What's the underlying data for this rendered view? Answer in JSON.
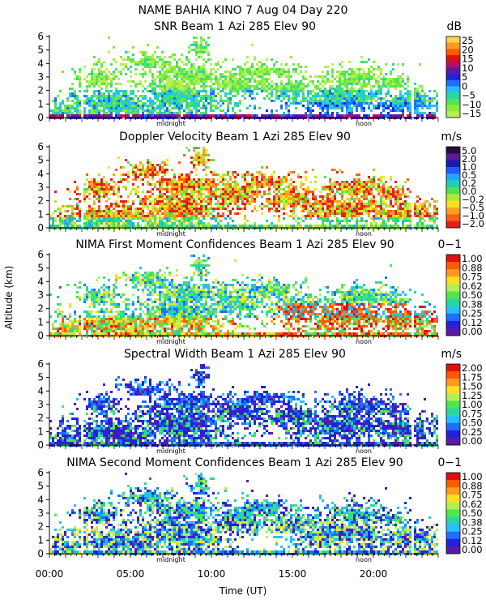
{
  "figure": {
    "header": "NAME BAHIA KINO    7 Aug 04 Day 220",
    "ylabel": "Altitude (km)",
    "xlabel": "Time (UT)",
    "xticks": [
      "00:00",
      "05:00",
      "10:00",
      "15:00",
      "20:00"
    ],
    "time_markers": [
      "midnight",
      "noon"
    ]
  },
  "chart_data": [
    {
      "type": "heatmap",
      "title": "SNR Beam 1 Azi 285 Elev 90",
      "unit": "dB",
      "x": "time (UT hours)",
      "xlim": [
        0,
        24
      ],
      "ylabel": "Altitude (km)",
      "ylim": [
        0,
        6
      ],
      "yticks": [
        "0",
        "1",
        "2",
        "3",
        "4",
        "5",
        "6"
      ],
      "colorbar": {
        "labels": [
          "25",
          "20",
          "15",
          "10",
          "5",
          "0",
          "−5",
          "−10",
          "−15"
        ],
        "colors": [
          "#ffd24d",
          "#ff9a1f",
          "#ff5a00",
          "#e01010",
          "#b0106a",
          "#5a1aa8",
          "#2222d8",
          "#1e6eff",
          "#22c0ff",
          "#2ad7a0",
          "#4ee84e",
          "#8de83a",
          "#b6ef55"
        ]
      }
    },
    {
      "type": "heatmap",
      "title": "Doppler Velocity Beam 1 Azi 285 Elev 90",
      "unit": "m/s",
      "x": "time (UT hours)",
      "xlim": [
        0,
        24
      ],
      "ylabel": "Altitude (km)",
      "ylim": [
        0,
        6
      ],
      "yticks": [
        "0",
        "1",
        "2",
        "3",
        "4",
        "5",
        "6"
      ],
      "colorbar": {
        "labels": [
          "5.0",
          "2.0",
          "1.0",
          "0.5",
          "0.2",
          "0.0",
          "−0.2",
          "−0.5",
          "−1.0",
          "−2.0"
        ],
        "colors": [
          "#2a0a3a",
          "#5a1a9a",
          "#1a1aaa",
          "#1e5aff",
          "#20a8ff",
          "#20d0a8",
          "#50e050",
          "#b0e830",
          "#ffe020",
          "#ffa020",
          "#ff6010",
          "#e02020"
        ]
      }
    },
    {
      "type": "heatmap",
      "title": "NIMA First Moment Confidences Beam 1 Azi 285 Elev 90",
      "unit": "0−1",
      "x": "time (UT hours)",
      "xlim": [
        0,
        24
      ],
      "ylabel": "Altitude (km)",
      "ylim": [
        0,
        6
      ],
      "yticks": [
        "0",
        "1",
        "2",
        "3",
        "4",
        "5",
        "6"
      ],
      "colorbar": {
        "labels": [
          "1.00",
          "0.88",
          "0.75",
          "0.62",
          "0.50",
          "0.38",
          "0.25",
          "0.12",
          "0.00"
        ],
        "colors": [
          "#e01010",
          "#ff5a00",
          "#ff9a1f",
          "#ffe020",
          "#b6ef55",
          "#4ee84e",
          "#2ad7a0",
          "#22c0ff",
          "#1e6eff",
          "#2222d8",
          "#5a1aa8"
        ]
      }
    },
    {
      "type": "heatmap",
      "title": "Spectral Width Beam 1 Azi 285 Elev 90",
      "unit": "m/s",
      "x": "time (UT hours)",
      "xlim": [
        0,
        24
      ],
      "ylabel": "Altitude (km)",
      "ylim": [
        0,
        6
      ],
      "yticks": [
        "0",
        "1",
        "2",
        "3",
        "4",
        "5",
        "6"
      ],
      "colorbar": {
        "labels": [
          "2.00",
          "1.75",
          "1.50",
          "1.25",
          "1.00",
          "0.75",
          "0.50",
          "0.25",
          "0.00"
        ],
        "colors": [
          "#e01010",
          "#ff5a00",
          "#ff9a1f",
          "#ffe020",
          "#b6ef55",
          "#4ee84e",
          "#2ad7a0",
          "#22c0ff",
          "#1e6eff",
          "#2222d8",
          "#5a1aa8"
        ]
      }
    },
    {
      "type": "heatmap",
      "title": "NIMA Second Moment Confidences Beam 1 Azi 285 Elev 90",
      "unit": "0−1",
      "x": "time (UT hours)",
      "xlim": [
        0,
        24
      ],
      "ylabel": "Altitude (km)",
      "ylim": [
        0,
        6
      ],
      "yticks": [
        "0",
        "1",
        "2",
        "3",
        "4",
        "5",
        "6"
      ],
      "colorbar": {
        "labels": [
          "1.00",
          "0.88",
          "0.75",
          "0.62",
          "0.50",
          "0.38",
          "0.25",
          "0.12",
          "0.00"
        ],
        "colors": [
          "#e01010",
          "#ff5a00",
          "#ff9a1f",
          "#ffe020",
          "#b6ef55",
          "#4ee84e",
          "#2ad7a0",
          "#22c0ff",
          "#1e6eff",
          "#2222d8",
          "#5a1aa8"
        ]
      }
    }
  ]
}
